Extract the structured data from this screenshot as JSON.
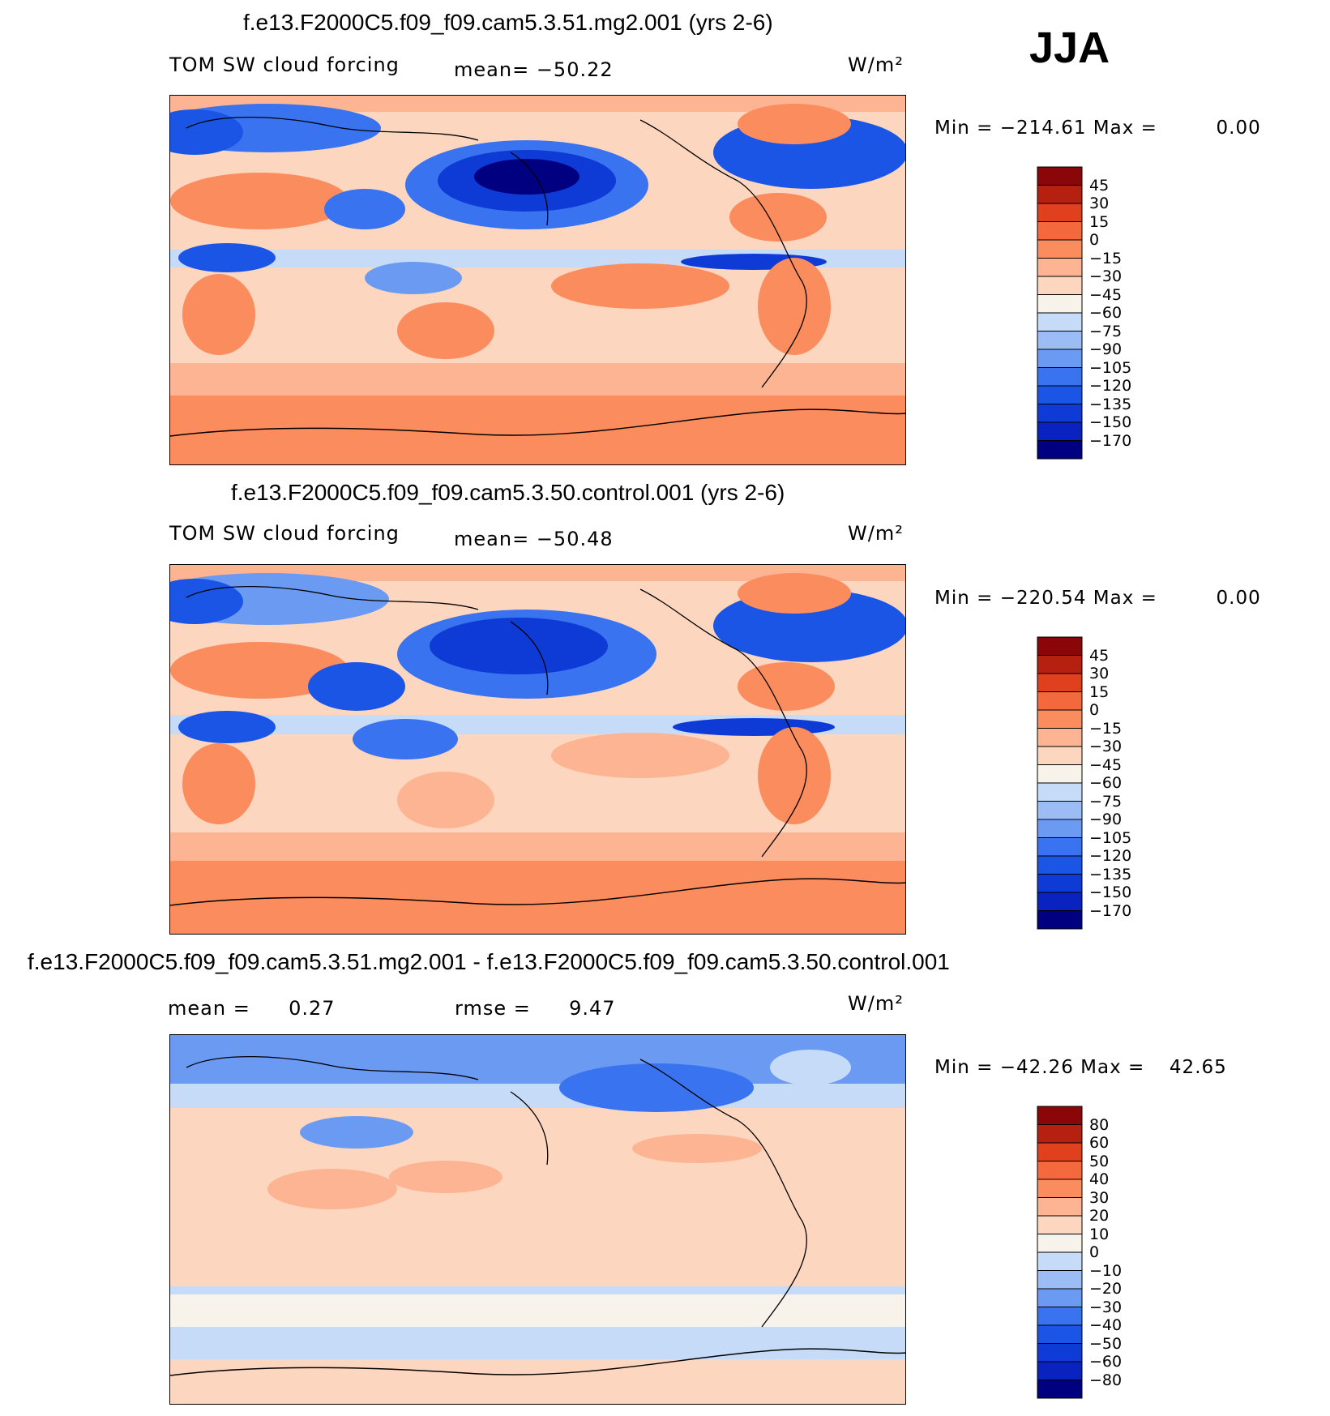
{
  "season": "JJA",
  "chart_data": [
    {
      "type": "heatmap",
      "title": "f.e13.F2000C5.f09_f09.cam5.3.51.mg2.001 (yrs 2-6)",
      "variable": "TOM SW cloud forcing",
      "stat_left_label": "mean=",
      "stat_left_value": "−50.22",
      "units": "W/m²",
      "min_label": "Min =",
      "min_value": "−214.61",
      "max_label": "Max =",
      "max_value": "0.00",
      "colorbar": {
        "colors": [
          "#000080",
          "#0a23c0",
          "#0e3ad6",
          "#1a55e6",
          "#3a73f0",
          "#6b9af2",
          "#9cbcf6",
          "#c6dbf8",
          "#f7f2ea",
          "#fdd6bf",
          "#fcb492",
          "#fa8c5e",
          "#f3683c",
          "#e0401e",
          "#b62011",
          "#8b0608"
        ],
        "labels": [
          "−170",
          "−150",
          "−135",
          "−120",
          "−105",
          "−90",
          "−75",
          "−60",
          "−45",
          "−30",
          "−15",
          "0",
          "15",
          "30",
          "45"
        ]
      }
    },
    {
      "type": "heatmap",
      "title": "f.e13.F2000C5.f09_f09.cam5.3.50.control.001 (yrs 2-6)",
      "variable": "TOM SW cloud forcing",
      "stat_left_label": "mean=",
      "stat_left_value": "−50.48",
      "units": "W/m²",
      "min_label": "Min =",
      "min_value": "−220.54",
      "max_label": "Max =",
      "max_value": "0.00",
      "colorbar": {
        "colors": [
          "#000080",
          "#0a23c0",
          "#0e3ad6",
          "#1a55e6",
          "#3a73f0",
          "#6b9af2",
          "#9cbcf6",
          "#c6dbf8",
          "#f7f2ea",
          "#fdd6bf",
          "#fcb492",
          "#fa8c5e",
          "#f3683c",
          "#e0401e",
          "#b62011",
          "#8b0608"
        ],
        "labels": [
          "−170",
          "−150",
          "−135",
          "−120",
          "−105",
          "−90",
          "−75",
          "−60",
          "−45",
          "−30",
          "−15",
          "0",
          "15",
          "30",
          "45"
        ]
      }
    },
    {
      "type": "heatmap",
      "title": "f.e13.F2000C5.f09_f09.cam5.3.51.mg2.001 - f.e13.F2000C5.f09_f09.cam5.3.50.control.001",
      "stat_left_label": "mean =",
      "stat_left_value": "0.27",
      "stat_right_label": "rmse =",
      "stat_right_value": "9.47",
      "units": "W/m²",
      "min_label": "Min =",
      "min_value": "−42.26",
      "max_label": "Max =",
      "max_value": "42.65",
      "colorbar": {
        "colors": [
          "#000080",
          "#0a23c0",
          "#0e3ad6",
          "#1a55e6",
          "#3a73f0",
          "#6b9af2",
          "#9cbcf6",
          "#c6dbf8",
          "#f7f2ea",
          "#fdd6bf",
          "#fcb492",
          "#fa8c5e",
          "#f3683c",
          "#e0401e",
          "#b62011",
          "#8b0608"
        ],
        "labels": [
          "−80",
          "−60",
          "−50",
          "−40",
          "−30",
          "−20",
          "−10",
          "0",
          "10",
          "20",
          "30",
          "40",
          "50",
          "60",
          "80"
        ]
      }
    }
  ]
}
